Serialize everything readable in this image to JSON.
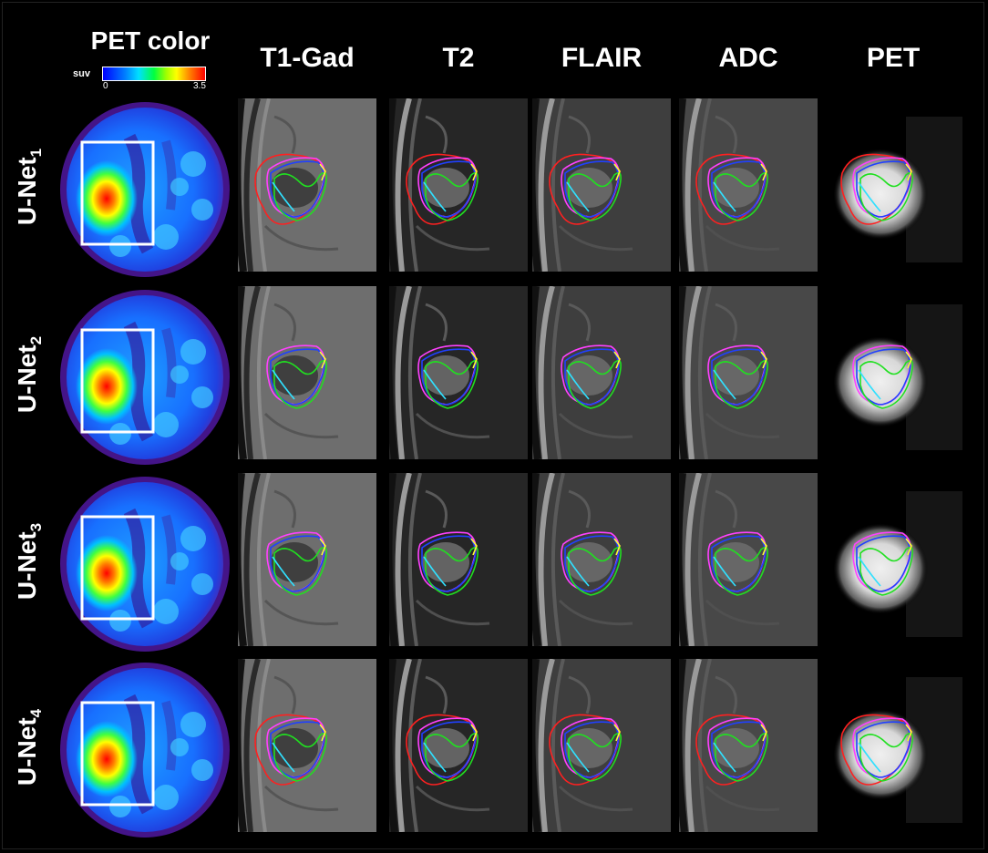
{
  "figure": {
    "pet_color_title": "PET color",
    "colorbar": {
      "unit_label": "suv",
      "min_label": "0",
      "max_label": "3.5"
    },
    "columns": [
      "T1-Gad",
      "T2",
      "FLAIR",
      "ADC",
      "PET"
    ],
    "rows": [
      {
        "base": "U-Net",
        "sub": "1"
      },
      {
        "base": "U-Net",
        "sub": "2"
      },
      {
        "base": "U-Net",
        "sub": "3"
      },
      {
        "base": "U-Net",
        "sub": "4"
      }
    ]
  },
  "contour_colors": [
    "#ff2020",
    "#2040ff",
    "#20e020",
    "#ff40ff",
    "#30e0ff",
    "#ffff30"
  ],
  "icons": [
    "roi-box",
    "pet-heatmap",
    "mri-slice"
  ]
}
